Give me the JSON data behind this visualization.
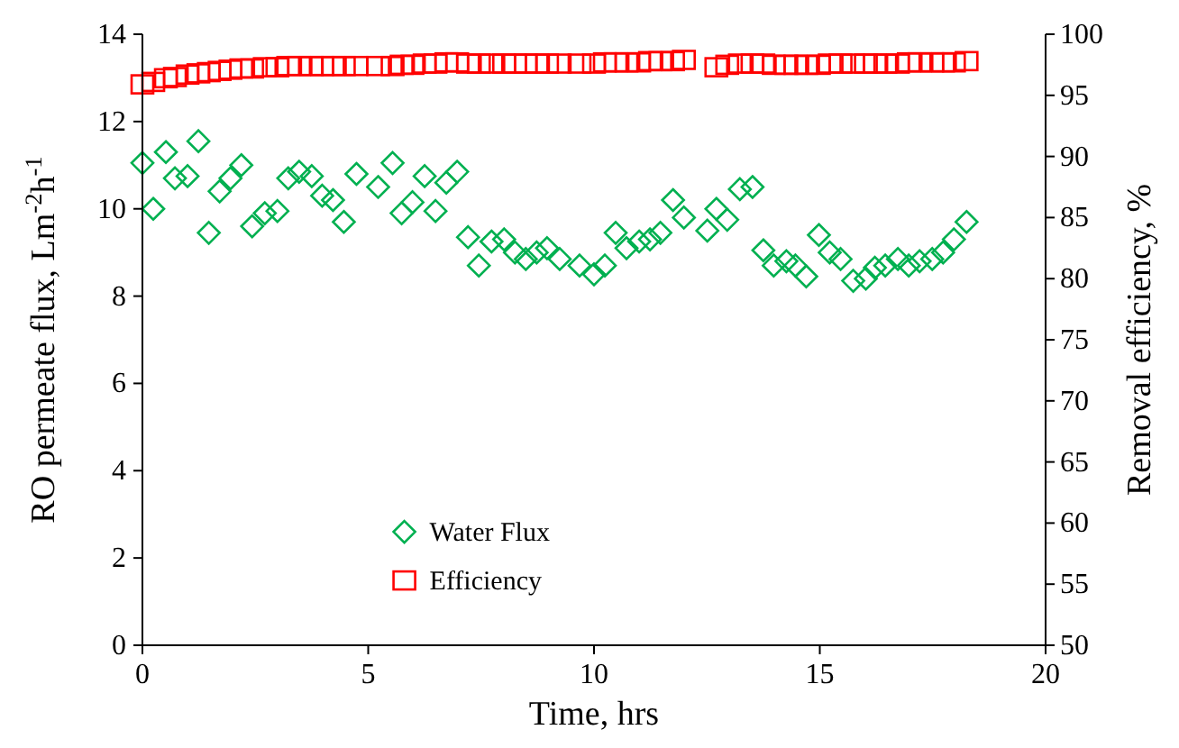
{
  "chart_data": {
    "type": "scatter",
    "xlabel": "Time, hrs",
    "ylabel": "RO permeate flux, Lm$^{-2}$h$^{-1}$",
    "y2label": "Removal efficiency, %",
    "xlim": [
      0,
      20
    ],
    "xticks": [
      0,
      5,
      10,
      15,
      20
    ],
    "ylim": [
      0,
      14
    ],
    "yticks": [
      0,
      2,
      4,
      6,
      8,
      10,
      12,
      14
    ],
    "y2lim": [
      50,
      100
    ],
    "y2ticks": [
      50,
      55,
      60,
      65,
      70,
      75,
      80,
      85,
      90,
      95,
      100
    ],
    "grid": false,
    "legend": "bottom",
    "series": [
      {
        "name": "Water Flux",
        "color": "#00b050",
        "marker": "diamond",
        "x": [
          0,
          0.24,
          0.52,
          0.72,
          1.0,
          1.24,
          1.47,
          1.71,
          1.95,
          2.19,
          2.43,
          2.71,
          2.99,
          3.23,
          3.47,
          3.75,
          3.98,
          4.22,
          4.46,
          4.74,
          5.22,
          5.54,
          5.74,
          5.98,
          6.25,
          6.49,
          6.73,
          6.97,
          7.21,
          7.45,
          7.73,
          8.01,
          8.25,
          8.49,
          8.73,
          8.96,
          9.24,
          9.68,
          10.0,
          10.24,
          10.48,
          10.72,
          11.0,
          11.24,
          11.47,
          11.75,
          11.99,
          12.51,
          12.71,
          12.95,
          13.23,
          13.51,
          13.75,
          13.98,
          14.26,
          14.46,
          14.7,
          14.98,
          15.22,
          15.46,
          15.74,
          16.02,
          16.22,
          16.45,
          16.73,
          16.97,
          17.21,
          17.49,
          17.73,
          17.97,
          18.25
        ],
        "values": [
          11.05,
          10.0,
          11.3,
          10.7,
          10.75,
          11.55,
          9.45,
          10.4,
          10.7,
          11.0,
          9.6,
          9.9,
          9.95,
          10.7,
          10.85,
          10.75,
          10.3,
          10.2,
          9.7,
          10.8,
          10.5,
          11.05,
          9.9,
          10.15,
          10.75,
          9.95,
          10.6,
          10.85,
          9.35,
          8.7,
          9.25,
          9.3,
          9.0,
          8.85,
          9.0,
          9.1,
          8.85,
          8.7,
          8.5,
          8.7,
          9.45,
          9.1,
          9.25,
          9.3,
          9.45,
          10.2,
          9.8,
          9.5,
          10.0,
          9.75,
          10.45,
          10.5,
          9.05,
          8.7,
          8.8,
          8.7,
          8.45,
          9.4,
          9.0,
          8.85,
          8.35,
          8.4,
          8.65,
          8.7,
          8.85,
          8.7,
          8.8,
          8.85,
          9.0,
          9.3,
          9.7
        ]
      },
      {
        "name": "Efficiency",
        "color": "#ff0000",
        "marker": "square",
        "axis": "y2",
        "x": [
          0,
          0.24,
          0.52,
          0.72,
          1.0,
          1.24,
          1.47,
          1.71,
          1.95,
          2.19,
          2.43,
          2.71,
          2.99,
          3.23,
          3.47,
          3.75,
          3.98,
          4.22,
          4.46,
          4.74,
          5.22,
          5.54,
          5.74,
          5.98,
          6.25,
          6.49,
          6.73,
          6.97,
          7.21,
          7.45,
          7.73,
          8.01,
          8.25,
          8.49,
          8.73,
          8.96,
          9.24,
          9.68,
          10.0,
          10.24,
          10.48,
          10.72,
          11.0,
          11.24,
          11.47,
          11.75,
          11.99,
          12.71,
          12.95,
          13.23,
          13.51,
          13.75,
          13.98,
          14.26,
          14.46,
          14.7,
          14.98,
          15.22,
          15.46,
          15.74,
          16.02,
          16.22,
          16.45,
          16.73,
          16.97,
          17.21,
          17.49,
          17.73,
          17.97,
          18.25
        ],
        "values": [
          95.9,
          96.1,
          96.4,
          96.5,
          96.7,
          96.8,
          96.9,
          97.0,
          97.1,
          97.2,
          97.2,
          97.3,
          97.3,
          97.4,
          97.4,
          97.4,
          97.4,
          97.4,
          97.4,
          97.4,
          97.4,
          97.4,
          97.5,
          97.5,
          97.6,
          97.6,
          97.7,
          97.7,
          97.6,
          97.6,
          97.6,
          97.6,
          97.6,
          97.6,
          97.6,
          97.6,
          97.6,
          97.6,
          97.6,
          97.7,
          97.7,
          97.7,
          97.7,
          97.8,
          97.8,
          97.8,
          97.9,
          97.3,
          97.5,
          97.6,
          97.6,
          97.6,
          97.5,
          97.5,
          97.5,
          97.5,
          97.5,
          97.6,
          97.6,
          97.6,
          97.6,
          97.6,
          97.6,
          97.6,
          97.7,
          97.7,
          97.7,
          97.7,
          97.7,
          97.8
        ]
      }
    ]
  }
}
